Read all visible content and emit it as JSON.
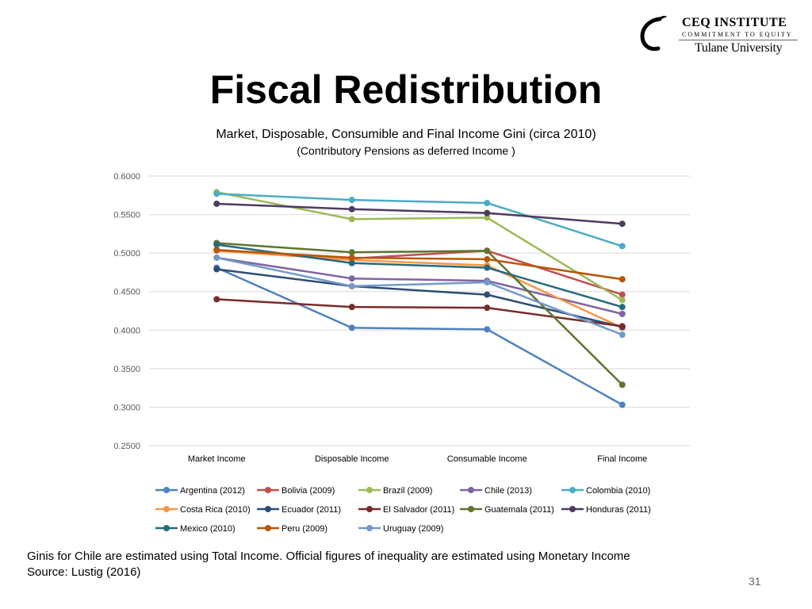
{
  "logo": {
    "line1": "CEQ INSTITUTE",
    "line2": "COMMITMENT TO EQUITY",
    "line3": "Tulane University"
  },
  "slide": {
    "title": "Fiscal Redistribution",
    "footnote_line1": "Ginis for Chile are estimated using Total Income. Official figures of inequality are estimated using Monetary Income",
    "footnote_line2": "Source: Lustig (2016)",
    "page_number": "31"
  },
  "chart_data": {
    "type": "line",
    "title": "Market, Disposable, Consumible and Final Income Gini (circa 2010)",
    "subtitle": "(Contributory Pensions as deferred Income )",
    "xlabel": "",
    "ylabel": "",
    "categories": [
      "Market Income",
      "Disposable Income",
      "Consumable Income",
      "Final Income"
    ],
    "ylim": [
      0.25,
      0.6
    ],
    "yticks": [
      "0.6000",
      "0.5500",
      "0.5000",
      "0.4500",
      "0.4000",
      "0.3500",
      "0.3000",
      "0.2500"
    ],
    "grid": true,
    "legend": "bottom",
    "series": [
      {
        "name": "Argentina (2012)",
        "color": "#4f81bd",
        "values": [
          0.481,
          0.403,
          0.401,
          0.303
        ]
      },
      {
        "name": "Bolivia (2009)",
        "color": "#c0504d",
        "values": [
          0.504,
          0.493,
          0.503,
          0.446
        ]
      },
      {
        "name": "Brazil (2009)",
        "color": "#9bbb59",
        "values": [
          0.579,
          0.544,
          0.546,
          0.439
        ]
      },
      {
        "name": "Chile (2013)",
        "color": "#8064a2",
        "values": [
          0.494,
          0.467,
          0.464,
          0.421
        ]
      },
      {
        "name": "Colombia (2010)",
        "color": "#4bacc6",
        "values": [
          0.577,
          0.569,
          0.565,
          0.509
        ]
      },
      {
        "name": "Costa Rica (2010)",
        "color": "#f79646",
        "values": [
          0.503,
          0.491,
          0.484,
          0.403
        ]
      },
      {
        "name": "Ecuador (2011)",
        "color": "#2c4d75",
        "values": [
          0.479,
          0.457,
          0.446,
          0.404
        ]
      },
      {
        "name": "El Salvador (2011)",
        "color": "#772c2a",
        "values": [
          0.44,
          0.43,
          0.429,
          0.405
        ]
      },
      {
        "name": "Guatemala (2011)",
        "color": "#5f7530",
        "values": [
          0.513,
          0.501,
          0.503,
          0.329
        ]
      },
      {
        "name": "Honduras (2011)",
        "color": "#4d3b62",
        "values": [
          0.564,
          0.557,
          0.552,
          0.538
        ]
      },
      {
        "name": "Mexico (2010)",
        "color": "#276a7c",
        "values": [
          0.511,
          0.487,
          0.481,
          0.43
        ]
      },
      {
        "name": "Peru (2009)",
        "color": "#b65708",
        "values": [
          0.504,
          0.494,
          0.492,
          0.466
        ]
      },
      {
        "name": "Uruguay (2009)",
        "color": "#729aca",
        "values": [
          0.494,
          0.457,
          0.462,
          0.394
        ]
      }
    ]
  }
}
